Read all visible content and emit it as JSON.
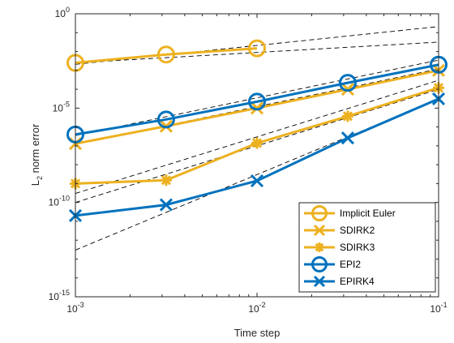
{
  "chart_data": {
    "type": "line",
    "title": "",
    "xlabel": "Time step",
    "ylabel_main": "L",
    "ylabel_sub": "2",
    "ylabel_rest": " norm error",
    "x_scale": "log",
    "y_scale": "log",
    "xlim": [
      0.001,
      0.1
    ],
    "ylim": [
      1e-15,
      1
    ],
    "x_ticks": [
      {
        "value": 0.001,
        "base": "10",
        "exp": "-3"
      },
      {
        "value": 0.01,
        "base": "10",
        "exp": "-2"
      },
      {
        "value": 0.1,
        "base": "10",
        "exp": "-1"
      }
    ],
    "y_ticks": [
      {
        "value": 1e-15,
        "base": "10",
        "exp": "-15"
      },
      {
        "value": 1e-10,
        "base": "10",
        "exp": "-10"
      },
      {
        "value": 1e-05,
        "base": "10",
        "exp": "-5"
      },
      {
        "value": 1,
        "base": "10",
        "exp": "0"
      }
    ],
    "grid": false,
    "legend_position": "bottom-right",
    "x": [
      0.001,
      0.00316,
      0.01,
      0.0316,
      0.1
    ],
    "series": [
      {
        "name": "Implicit Euler",
        "color": "#EDB120",
        "marker": "circle",
        "x": [
          0.001,
          0.00316,
          0.01
        ],
        "values": [
          0.0025,
          0.0069,
          0.0148
        ]
      },
      {
        "name": "SDIRK2",
        "color": "#EDB120",
        "marker": "x",
        "x": [
          0.001,
          0.00316,
          0.01,
          0.0316,
          0.1
        ],
        "values": [
          1.3e-07,
          1.1e-06,
          1e-05,
          0.0001,
          0.001
        ]
      },
      {
        "name": "SDIRK3",
        "color": "#EDB120",
        "marker": "asterisk",
        "x": [
          0.001,
          0.00316,
          0.01,
          0.0316,
          0.1
        ],
        "values": [
          1e-09,
          1.5e-09,
          1.4e-07,
          3.7e-06,
          0.00012
        ]
      },
      {
        "name": "EPI2",
        "color": "#0072BD",
        "marker": "circle",
        "x": [
          0.001,
          0.00316,
          0.01,
          0.0316,
          0.1
        ],
        "values": [
          4e-07,
          2.5e-06,
          2.2e-05,
          0.00022,
          0.002
        ]
      },
      {
        "name": "EPIRK4",
        "color": "#0072BD",
        "marker": "x",
        "x": [
          0.001,
          0.00316,
          0.01,
          0.0316,
          0.1
        ],
        "values": [
          2e-11,
          7.5e-11,
          1.4e-09,
          2.6e-07,
          3.1e-05
        ]
      }
    ],
    "reference_lines": [
      {
        "style": "dashed",
        "color": "#000000",
        "x": [
          0.001,
          0.1
        ],
        "values": [
          0.0025,
          0.0316
        ]
      },
      {
        "style": "dashed",
        "color": "#000000",
        "x": [
          0.001,
          0.1
        ],
        "values": [
          0.0021,
          0.21
        ]
      },
      {
        "style": "dashed",
        "color": "#000000",
        "x": [
          0.001,
          0.1
        ],
        "values": [
          1.2e-07,
          0.0012
        ]
      },
      {
        "style": "dashed",
        "color": "#000000",
        "x": [
          0.001,
          0.1
        ],
        "values": [
          3.5e-07,
          0.0035
        ]
      },
      {
        "style": "dashed",
        "color": "#000000",
        "x": [
          0.001,
          0.1
        ],
        "values": [
          1e-10,
          0.0001
        ]
      },
      {
        "style": "dashed",
        "color": "#000000",
        "x": [
          0.001,
          0.1
        ],
        "values": [
          3e-10,
          0.0003
        ]
      },
      {
        "style": "dashed",
        "color": "#000000",
        "x": [
          0.001,
          0.1
        ],
        "values": [
          3e-13,
          3e-05
        ]
      }
    ]
  }
}
